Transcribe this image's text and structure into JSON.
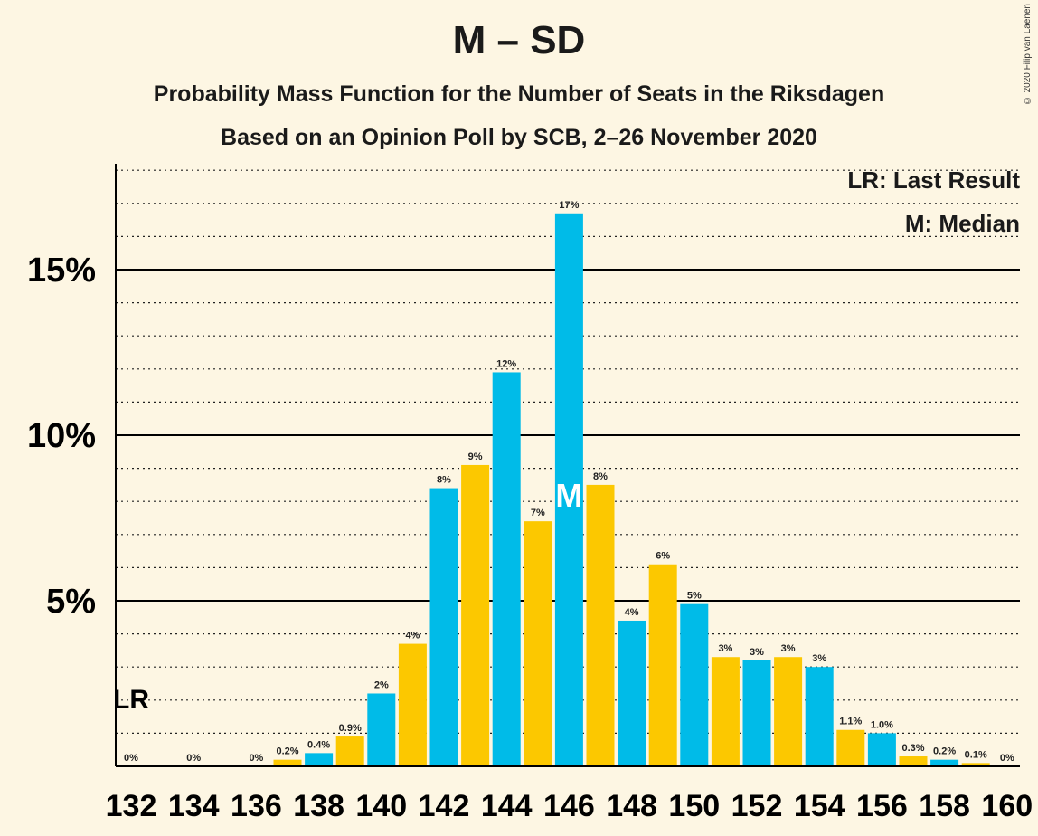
{
  "title": "M – SD",
  "subtitle_line1": "Probability Mass Function for the Number of Seats in the Riksdagen",
  "subtitle_line2": "Based on an Opinion Poll by SCB, 2–26 November 2020",
  "copyright": "© 2020 Filip van Laenen",
  "legend": {
    "last_result": "LR: Last Result",
    "median": "M: Median"
  },
  "colors": {
    "blue": "#00bbe8",
    "yellow": "#fcc800",
    "background": "#fdf6e3"
  },
  "chart_data": {
    "type": "bar",
    "x": [
      132,
      133,
      134,
      135,
      136,
      137,
      138,
      139,
      140,
      141,
      142,
      143,
      144,
      145,
      146,
      147,
      148,
      149,
      150,
      151,
      152,
      153,
      154,
      155,
      156,
      157,
      158,
      159,
      160
    ],
    "values": [
      0,
      0,
      0,
      0,
      0,
      0.2,
      0.4,
      0.9,
      2.2,
      3.7,
      8.4,
      9.1,
      11.9,
      7.4,
      16.7,
      8.5,
      4.4,
      6.1,
      4.9,
      3.3,
      3.2,
      3.3,
      3.0,
      1.1,
      1.0,
      0.3,
      0.2,
      0.1,
      0
    ],
    "data_labels": [
      "0%",
      "",
      "0%",
      "",
      "0%",
      "0.2%",
      "0.4%",
      "0.9%",
      "2%",
      "4%",
      "8%",
      "9%",
      "12%",
      "7%",
      "17%",
      "8%",
      "4%",
      "6%",
      "5%",
      "3%",
      "3%",
      "3%",
      "3%",
      "1.1%",
      "1.0%",
      "0.3%",
      "0.2%",
      "0.1%",
      "0%"
    ],
    "x_tick_labels": [
      "132",
      "134",
      "136",
      "138",
      "140",
      "142",
      "144",
      "146",
      "148",
      "150",
      "152",
      "154",
      "156",
      "158",
      "160"
    ],
    "y_tick_labels": [
      "5%",
      "10%",
      "15%"
    ],
    "y_ticks": [
      5,
      10,
      15
    ],
    "ylim": [
      0,
      18.2
    ],
    "minor_grid_step": 1,
    "median_seat": 146,
    "median_label": "M",
    "last_result_seat": 132,
    "last_result_label": "LR",
    "grid": true,
    "legend_position": "top-right"
  }
}
